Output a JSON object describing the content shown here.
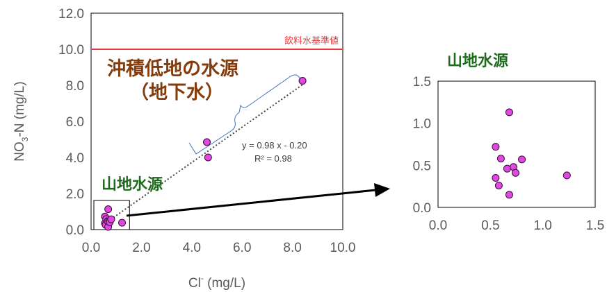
{
  "colors": {
    "point_fill": "#e048e0",
    "point_stroke": "#3a0a3a",
    "standard_line": "#e8383d",
    "brace": "#4472c4",
    "label_brown": "#843c0c",
    "label_green": "#1e6b1e"
  },
  "chart_data": [
    {
      "type": "scatter",
      "xlabel_main": "Cl",
      "xlabel_sup": "-",
      "xlabel_unit": " (mg/L)",
      "ylabel_main": "NO",
      "ylabel_sub": "3",
      "ylabel_unit": "-N (mg/L)",
      "xlim": [
        0,
        10
      ],
      "ylim": [
        0,
        12
      ],
      "xticks": [
        "0.0",
        "2.0",
        "4.0",
        "6.0",
        "8.0",
        "10.0"
      ],
      "yticks": [
        "0.0",
        "2.0",
        "4.0",
        "6.0",
        "8.0",
        "10.0",
        "12.0"
      ],
      "series": [
        {
          "points": [
            {
              "x": 0.55,
              "y": 0.35
            },
            {
              "x": 0.55,
              "y": 0.72
            },
            {
              "x": 0.58,
              "y": 0.26
            },
            {
              "x": 0.6,
              "y": 0.58
            },
            {
              "x": 0.66,
              "y": 0.46
            },
            {
              "x": 0.68,
              "y": 1.13
            },
            {
              "x": 0.68,
              "y": 0.15
            },
            {
              "x": 0.72,
              "y": 0.48
            },
            {
              "x": 0.74,
              "y": 0.41
            },
            {
              "x": 0.8,
              "y": 0.57
            },
            {
              "x": 1.23,
              "y": 0.38
            },
            {
              "x": 4.6,
              "y": 4.85
            },
            {
              "x": 4.65,
              "y": 4.0
            },
            {
              "x": 8.4,
              "y": 8.25
            }
          ]
        }
      ],
      "reference_line": {
        "y": 10.0,
        "label": "飲料水基準値"
      },
      "trendline": {
        "slope": 0.98,
        "intercept": -0.2,
        "x_range": [
          0.55,
          8.4
        ],
        "equation": "y = 0.98 x - 0.20",
        "r2": "R² = 0.98"
      },
      "annotations": {
        "groundwater_line1": "沖積低地の水源",
        "groundwater_line2": "（地下水）",
        "mountain": "山地水源"
      },
      "zoom_box": {
        "xlim": [
          0,
          1.5
        ],
        "ylim": [
          0,
          1.5
        ]
      }
    },
    {
      "type": "scatter",
      "title": "山地水源",
      "xlim": [
        0,
        1.5
      ],
      "ylim": [
        0,
        1.5
      ],
      "xticks": [
        "0.0",
        "0.5",
        "1.0",
        "1.5"
      ],
      "yticks": [
        "0.0",
        "0.5",
        "1.0",
        "1.5"
      ],
      "series": [
        {
          "points": [
            {
              "x": 0.55,
              "y": 0.35
            },
            {
              "x": 0.55,
              "y": 0.72
            },
            {
              "x": 0.58,
              "y": 0.26
            },
            {
              "x": 0.6,
              "y": 0.58
            },
            {
              "x": 0.66,
              "y": 0.46
            },
            {
              "x": 0.68,
              "y": 1.13
            },
            {
              "x": 0.68,
              "y": 0.15
            },
            {
              "x": 0.72,
              "y": 0.48
            },
            {
              "x": 0.74,
              "y": 0.41
            },
            {
              "x": 0.8,
              "y": 0.57
            },
            {
              "x": 1.23,
              "y": 0.38
            }
          ]
        }
      ]
    }
  ]
}
